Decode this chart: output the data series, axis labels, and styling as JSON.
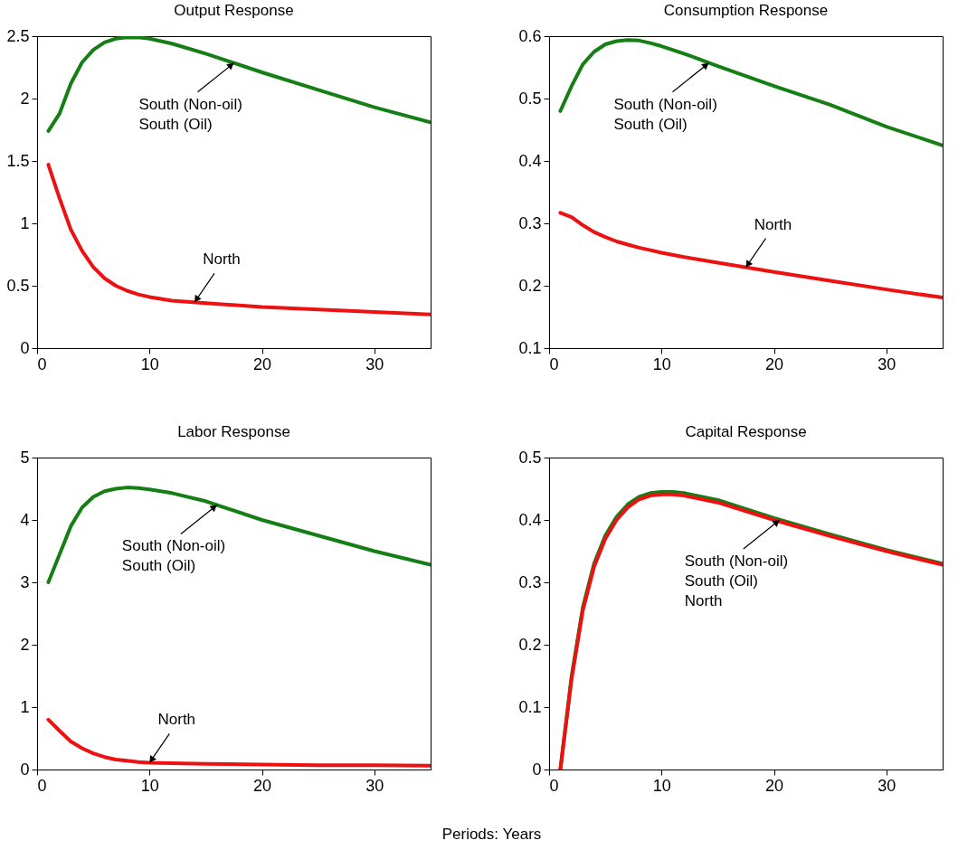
{
  "chart_data": [
    {
      "type": "line",
      "title": "Output Response",
      "x": [
        1,
        2,
        3,
        4,
        5,
        6,
        7,
        8,
        9,
        10,
        12,
        15,
        20,
        25,
        30,
        35
      ],
      "xlim": [
        0,
        35
      ],
      "xticks": [
        0,
        10,
        20,
        30
      ],
      "ylim": [
        0,
        2.5
      ],
      "yticks": [
        0,
        0.5,
        1,
        1.5,
        2,
        2.5
      ],
      "grid": false,
      "series": [
        {
          "color": "#157f15",
          "values": [
            1.74,
            1.88,
            2.12,
            2.29,
            2.39,
            2.45,
            2.48,
            2.49,
            2.49,
            2.48,
            2.44,
            2.36,
            2.21,
            2.07,
            1.93,
            1.81
          ]
        },
        {
          "color": "#ee1111",
          "values": [
            1.47,
            1.2,
            0.95,
            0.78,
            0.65,
            0.56,
            0.5,
            0.46,
            0.43,
            0.41,
            0.38,
            0.36,
            0.33,
            0.31,
            0.29,
            0.27
          ]
        }
      ],
      "annotations": [
        {
          "text": "South (Non-oil)\nSouth (Oil)",
          "x": 17.5,
          "y": 2.285
        },
        {
          "text": "North",
          "x": 14,
          "y": 0.367
        }
      ]
    },
    {
      "type": "line",
      "title": "Consumption Response",
      "x": [
        1,
        2,
        3,
        4,
        5,
        6,
        7,
        8,
        9,
        10,
        12,
        15,
        20,
        25,
        30,
        35
      ],
      "xlim": [
        0,
        35
      ],
      "xticks": [
        0,
        10,
        20,
        30
      ],
      "ylim": [
        0.1,
        0.6
      ],
      "yticks": [
        0.1,
        0.2,
        0.3,
        0.4,
        0.5,
        0.6
      ],
      "grid": false,
      "series": [
        {
          "color": "#157f15",
          "values": [
            0.48,
            0.52,
            0.555,
            0.575,
            0.587,
            0.592,
            0.594,
            0.593,
            0.589,
            0.584,
            0.572,
            0.552,
            0.52,
            0.49,
            0.455,
            0.425
          ]
        },
        {
          "color": "#ee1111",
          "values": [
            0.317,
            0.31,
            0.297,
            0.286,
            0.278,
            0.271,
            0.266,
            0.261,
            0.257,
            0.253,
            0.246,
            0.237,
            0.222,
            0.208,
            0.194,
            0.181
          ]
        }
      ],
      "annotations": [
        {
          "text": "South (Non-oil)\nSouth (Oil)",
          "x": 14.2,
          "y": 0.557
        },
        {
          "text": "North",
          "x": 17.5,
          "y": 0.2295
        }
      ]
    },
    {
      "type": "line",
      "title": "Labor Response",
      "x": [
        1,
        2,
        3,
        4,
        5,
        6,
        7,
        8,
        9,
        10,
        12,
        15,
        20,
        25,
        30,
        35
      ],
      "xlim": [
        0,
        35
      ],
      "xticks": [
        0,
        10,
        20,
        30
      ],
      "ylim": [
        0,
        5
      ],
      "yticks": [
        0,
        1,
        2,
        3,
        4,
        5
      ],
      "grid": false,
      "series": [
        {
          "color": "#157f15",
          "values": [
            3.0,
            3.45,
            3.9,
            4.2,
            4.37,
            4.46,
            4.5,
            4.52,
            4.51,
            4.49,
            4.43,
            4.3,
            4.0,
            3.75,
            3.5,
            3.28
          ]
        },
        {
          "color": "#ee1111",
          "values": [
            0.8,
            0.62,
            0.45,
            0.34,
            0.26,
            0.2,
            0.16,
            0.14,
            0.12,
            0.11,
            0.1,
            0.09,
            0.08,
            0.07,
            0.07,
            0.06
          ]
        }
      ],
      "annotations": [
        {
          "text": "South (Non-oil)\nSouth (Oil)",
          "x": 16,
          "y": 4.24
        },
        {
          "text": "North",
          "x": 10,
          "y": 0.11
        }
      ]
    },
    {
      "type": "line",
      "title": "Capital Response",
      "x": [
        1,
        2,
        3,
        4,
        5,
        6,
        7,
        8,
        9,
        10,
        11,
        12,
        15,
        20,
        25,
        30,
        35
      ],
      "xlim": [
        0,
        35
      ],
      "xticks": [
        0,
        10,
        20,
        30
      ],
      "ylim": [
        0,
        0.5
      ],
      "yticks": [
        0,
        0.1,
        0.2,
        0.3,
        0.4,
        0.5
      ],
      "grid": false,
      "series": [
        {
          "color": "#157f15",
          "values": [
            0,
            0.15,
            0.26,
            0.33,
            0.375,
            0.405,
            0.425,
            0.437,
            0.443,
            0.445,
            0.445,
            0.443,
            0.432,
            0.403,
            0.377,
            0.352,
            0.33
          ]
        },
        {
          "color": "#ee1111",
          "values": [
            0,
            0.145,
            0.255,
            0.325,
            0.37,
            0.4,
            0.42,
            0.433,
            0.439,
            0.441,
            0.441,
            0.439,
            0.428,
            0.4,
            0.374,
            0.35,
            0.328
          ]
        }
      ],
      "annotations": [
        {
          "text": "South (Non-oil)\nSouth (Oil)\nNorth",
          "x": 20.5,
          "y": 0.4
        },
        "Periods: Years"
      ]
    }
  ]
}
